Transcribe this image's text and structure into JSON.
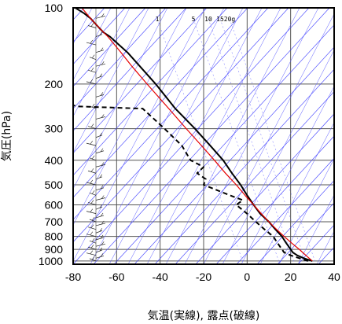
{
  "chart_data": {
    "type": "line",
    "title": "",
    "xlabel": "気温(実線), 露点(破線)",
    "ylabel": "気圧(hPa)",
    "x_unit": "°C",
    "y_unit": "hPa",
    "xlim": [
      -80,
      40
    ],
    "ylim": [
      1030,
      100
    ],
    "y_scale": "log",
    "grid": true,
    "x_ticks": [
      -80,
      -60,
      -40,
      -20,
      0,
      20,
      40
    ],
    "y_ticks": [
      100,
      200,
      300,
      400,
      500,
      600,
      700,
      800,
      900,
      1000
    ],
    "mixing_ratio_labels": [
      "1",
      "5",
      "10",
      "15",
      "20g"
    ],
    "series": [
      {
        "style": "solid",
        "color": "#000000",
        "points": [
          {
            "p": 1000,
            "t": 30
          },
          {
            "p": 975,
            "t": 26
          },
          {
            "p": 950,
            "t": 23
          },
          {
            "p": 925,
            "t": 21
          },
          {
            "p": 900,
            "t": 20
          },
          {
            "p": 850,
            "t": 18
          },
          {
            "p": 800,
            "t": 16
          },
          {
            "p": 750,
            "t": 13
          },
          {
            "p": 700,
            "t": 10
          },
          {
            "p": 650,
            "t": 6
          },
          {
            "p": 600,
            "t": 3
          },
          {
            "p": 550,
            "t": 0
          },
          {
            "p": 500,
            "t": -3
          },
          {
            "p": 450,
            "t": -7
          },
          {
            "p": 400,
            "t": -11
          },
          {
            "p": 350,
            "t": -17
          },
          {
            "p": 300,
            "t": -24
          },
          {
            "p": 250,
            "t": -33
          },
          {
            "p": 200,
            "t": -42
          },
          {
            "p": 150,
            "t": -55
          },
          {
            "p": 130,
            "t": -63
          },
          {
            "p": 125,
            "t": -66
          },
          {
            "p": 120,
            "t": -68
          },
          {
            "p": 115,
            "t": -70
          },
          {
            "p": 110,
            "t": -72
          },
          {
            "p": 105,
            "t": -75
          },
          {
            "p": 100,
            "t": -79
          }
        ]
      },
      {
        "style": "dashed",
        "color": "#000000",
        "points": [
          {
            "p": 1000,
            "t": 28
          },
          {
            "p": 975,
            "t": 24
          },
          {
            "p": 950,
            "t": 20
          },
          {
            "p": 925,
            "t": 17
          },
          {
            "p": 900,
            "t": 16
          },
          {
            "p": 850,
            "t": 14
          },
          {
            "p": 800,
            "t": 12
          },
          {
            "p": 750,
            "t": 8
          },
          {
            "p": 700,
            "t": 4
          },
          {
            "p": 650,
            "t": 0
          },
          {
            "p": 600,
            "t": -5
          },
          {
            "p": 575,
            "t": -2
          },
          {
            "p": 550,
            "t": -8
          },
          {
            "p": 500,
            "t": -20
          },
          {
            "p": 475,
            "t": -19
          },
          {
            "p": 450,
            "t": -23
          },
          {
            "p": 425,
            "t": -20
          },
          {
            "p": 400,
            "t": -26
          },
          {
            "p": 350,
            "t": -30
          },
          {
            "p": 300,
            "t": -38
          },
          {
            "p": 250,
            "t": -48
          },
          {
            "p": 245,
            "t": -78
          },
          {
            "p": 240,
            "t": -82
          }
        ]
      },
      {
        "style": "solid",
        "color": "#e60000",
        "points": [
          {
            "p": 1000,
            "t": 30
          },
          {
            "p": 950,
            "t": 27
          },
          {
            "p": 900,
            "t": 24
          },
          {
            "p": 850,
            "t": 20.5
          },
          {
            "p": 800,
            "t": 17
          },
          {
            "p": 750,
            "t": 13.5
          },
          {
            "p": 700,
            "t": 10
          },
          {
            "p": 650,
            "t": 6.5
          },
          {
            "p": 600,
            "t": 3
          },
          {
            "p": 550,
            "t": -1
          },
          {
            "p": 500,
            "t": -5
          },
          {
            "p": 450,
            "t": -10
          },
          {
            "p": 400,
            "t": -15
          },
          {
            "p": 350,
            "t": -21
          },
          {
            "p": 300,
            "t": -28
          },
          {
            "p": 250,
            "t": -36
          },
          {
            "p": 200,
            "t": -46
          },
          {
            "p": 170,
            "t": -53
          },
          {
            "p": 150,
            "t": -58
          },
          {
            "p": 130,
            "t": -64
          },
          {
            "p": 120,
            "t": -68
          },
          {
            "p": 110,
            "t": -72
          },
          {
            "p": 100,
            "t": -76
          }
        ]
      }
    ],
    "wind_profile_levels": [
      1000,
      975,
      950,
      925,
      900,
      875,
      850,
      825,
      800,
      775,
      750,
      725,
      700,
      675,
      650,
      625,
      600,
      575,
      550,
      525,
      500,
      475,
      450,
      425,
      400,
      375,
      350,
      325,
      300,
      275,
      250,
      225,
      200,
      190,
      180,
      170,
      160,
      150,
      140,
      130,
      120,
      110,
      100
    ]
  }
}
